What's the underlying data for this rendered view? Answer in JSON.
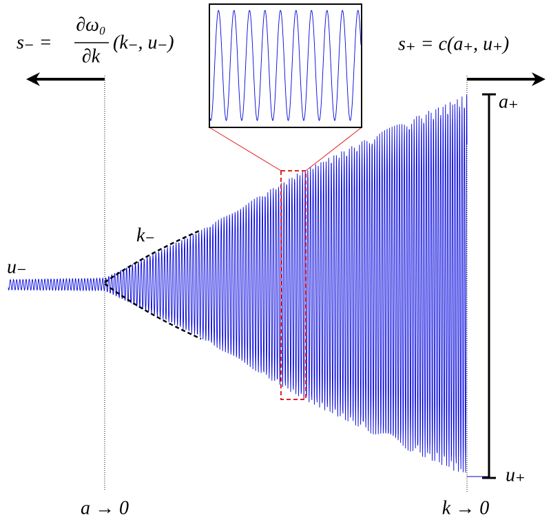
{
  "labels": {
    "left_speed": {
      "lhs": "s₋ =",
      "numerator": "∂ω₀",
      "denominator": "∂k",
      "args": "(k₋, u₋)"
    },
    "right_speed": "s₊ = c(a₊, u₊)",
    "k_minus": "k₋",
    "u_minus": "u₋",
    "a_plus": "a₊",
    "u_plus": "u₊",
    "left_limit": "a → 0",
    "right_limit": "k → 0"
  }
}
